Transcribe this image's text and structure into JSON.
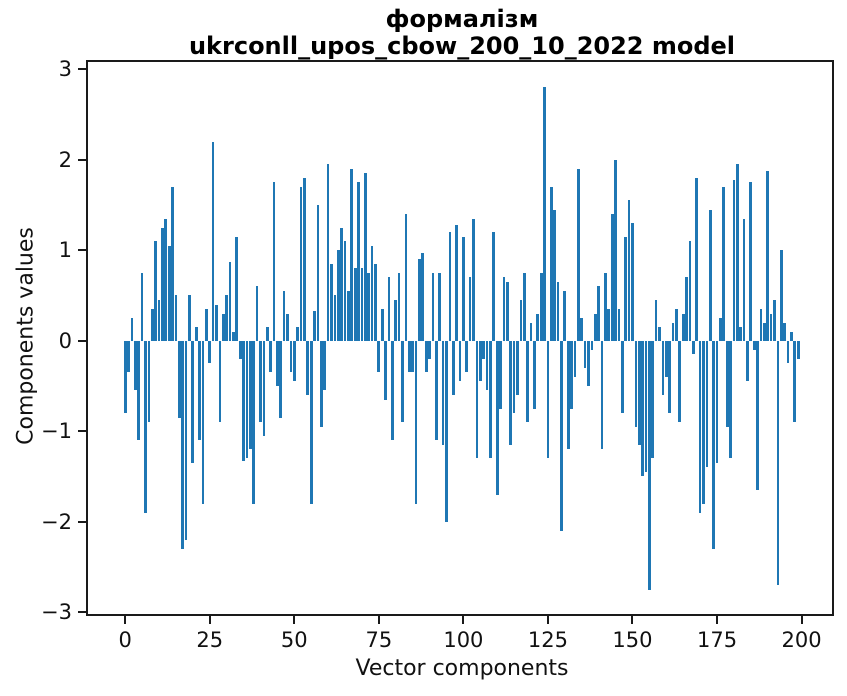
{
  "title": {
    "line1": "формалізм",
    "line2": "ukrconll_upos_cbow_200_10_2022 model"
  },
  "chart_data": {
    "type": "bar",
    "title": "формалізм\nukrconll_upos_cbow_200_10_2022 model",
    "xlabel": "Vector components",
    "ylabel": "Components values",
    "bar_color": "#1f77b4",
    "background_color": "#ffffff",
    "spine_color": "#1a1a1a",
    "grid": false,
    "legend": null,
    "x_start": 0,
    "bar_data_width": 0.8,
    "xlim": [
      -11,
      209
    ],
    "ylim": [
      -3.02,
      3.08
    ],
    "xticks": [
      0,
      25,
      50,
      75,
      100,
      125,
      150,
      175,
      200
    ],
    "yticks": [
      -3,
      -2,
      -1,
      0,
      1,
      2,
      3
    ],
    "values": [
      -0.8,
      -0.35,
      0.25,
      -0.55,
      -1.1,
      0.75,
      -1.9,
      -0.9,
      0.35,
      1.1,
      0.45,
      1.25,
      1.35,
      1.05,
      1.7,
      0.5,
      -0.85,
      -2.3,
      -2.2,
      0.5,
      -1.35,
      0.15,
      -1.1,
      -1.8,
      0.35,
      -0.25,
      2.2,
      0.4,
      -0.9,
      0.3,
      0.5,
      0.87,
      0.1,
      1.15,
      -0.2,
      -1.33,
      -1.3,
      -1.2,
      -1.8,
      0.6,
      -0.9,
      -1.05,
      0.15,
      -0.35,
      1.75,
      -0.5,
      -0.85,
      0.55,
      0.3,
      -0.35,
      -0.45,
      0.15,
      1.7,
      1.8,
      -0.6,
      -1.8,
      0.33,
      1.5,
      -0.95,
      -0.55,
      1.95,
      0.85,
      0.5,
      1.0,
      1.25,
      1.1,
      0.55,
      1.9,
      0.8,
      1.75,
      0.8,
      1.85,
      0.75,
      1.05,
      0.85,
      -0.35,
      0.35,
      -0.65,
      0.7,
      -1.1,
      0.45,
      0.75,
      -0.9,
      1.4,
      -0.35,
      -0.35,
      -1.8,
      0.9,
      0.97,
      -0.35,
      -0.2,
      0.75,
      -1.1,
      0.75,
      -1.15,
      -2.0,
      1.2,
      -0.6,
      1.28,
      -0.45,
      1.15,
      -0.35,
      0.7,
      1.35,
      -1.3,
      -0.45,
      -0.2,
      -0.55,
      -1.3,
      1.2,
      -1.7,
      -0.75,
      0.7,
      0.65,
      -1.15,
      -0.8,
      -0.6,
      0.45,
      0.75,
      -0.9,
      0.2,
      -0.75,
      0.3,
      0.75,
      2.8,
      -1.3,
      1.7,
      1.45,
      0.65,
      -2.1,
      0.55,
      -1.2,
      -0.75,
      -0.4,
      1.9,
      0.25,
      -0.3,
      -0.5,
      -0.1,
      0.3,
      0.6,
      -1.2,
      0.75,
      0.35,
      1.4,
      2.0,
      0.35,
      -0.8,
      1.15,
      1.55,
      1.3,
      -0.95,
      -1.15,
      -1.5,
      -1.45,
      -2.75,
      -1.3,
      0.45,
      0.15,
      -0.6,
      -0.4,
      -0.8,
      0.2,
      0.35,
      -0.9,
      0.3,
      0.7,
      1.1,
      -0.15,
      1.8,
      -1.9,
      -1.8,
      -1.4,
      1.45,
      -2.3,
      -1.35,
      0.25,
      1.7,
      -0.95,
      -1.3,
      1.78,
      1.95,
      0.15,
      1.35,
      -0.45,
      1.75,
      -0.1,
      -1.65,
      0.35,
      0.2,
      1.88,
      0.3,
      0.45,
      -2.7,
      1.0,
      0.2,
      -0.25,
      0.1,
      -0.9,
      -0.2
    ]
  }
}
